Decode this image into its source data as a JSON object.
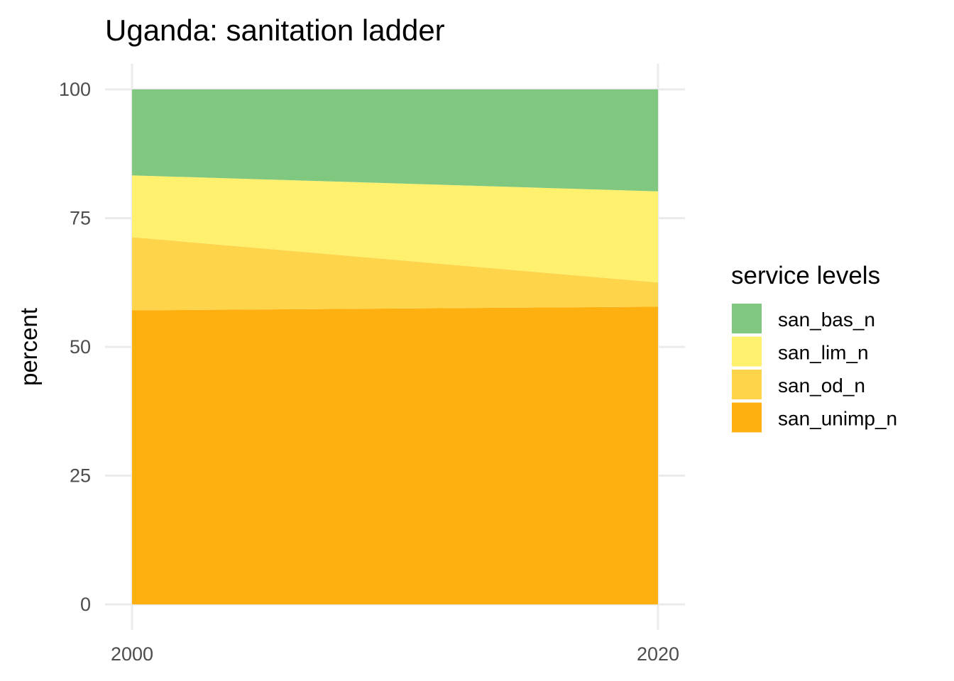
{
  "chart_data": {
    "type": "area",
    "title": "Uganda: sanitation ladder",
    "xlabel": "",
    "ylabel": "percent",
    "x": [
      2000,
      2020
    ],
    "xticks": [
      "2000",
      "2020"
    ],
    "yticks": [
      0,
      25,
      50,
      75,
      100
    ],
    "ylim": [
      0,
      100
    ],
    "stacked": true,
    "series": [
      {
        "name": "san_unimp_n",
        "values": [
          57.1,
          57.8
        ],
        "color": "#FDB010"
      },
      {
        "name": "san_od_n",
        "values": [
          14.2,
          4.7
        ],
        "color": "#FDD44A"
      },
      {
        "name": "san_lim_n",
        "values": [
          12.0,
          17.7
        ],
        "color": "#FFF06E"
      },
      {
        "name": "san_bas_n",
        "values": [
          16.7,
          19.8
        ],
        "color": "#80C780"
      }
    ],
    "legend": {
      "title": "service levels",
      "position": "right",
      "order": [
        "san_bas_n",
        "san_lim_n",
        "san_od_n",
        "san_unimp_n"
      ]
    },
    "grid": true
  }
}
